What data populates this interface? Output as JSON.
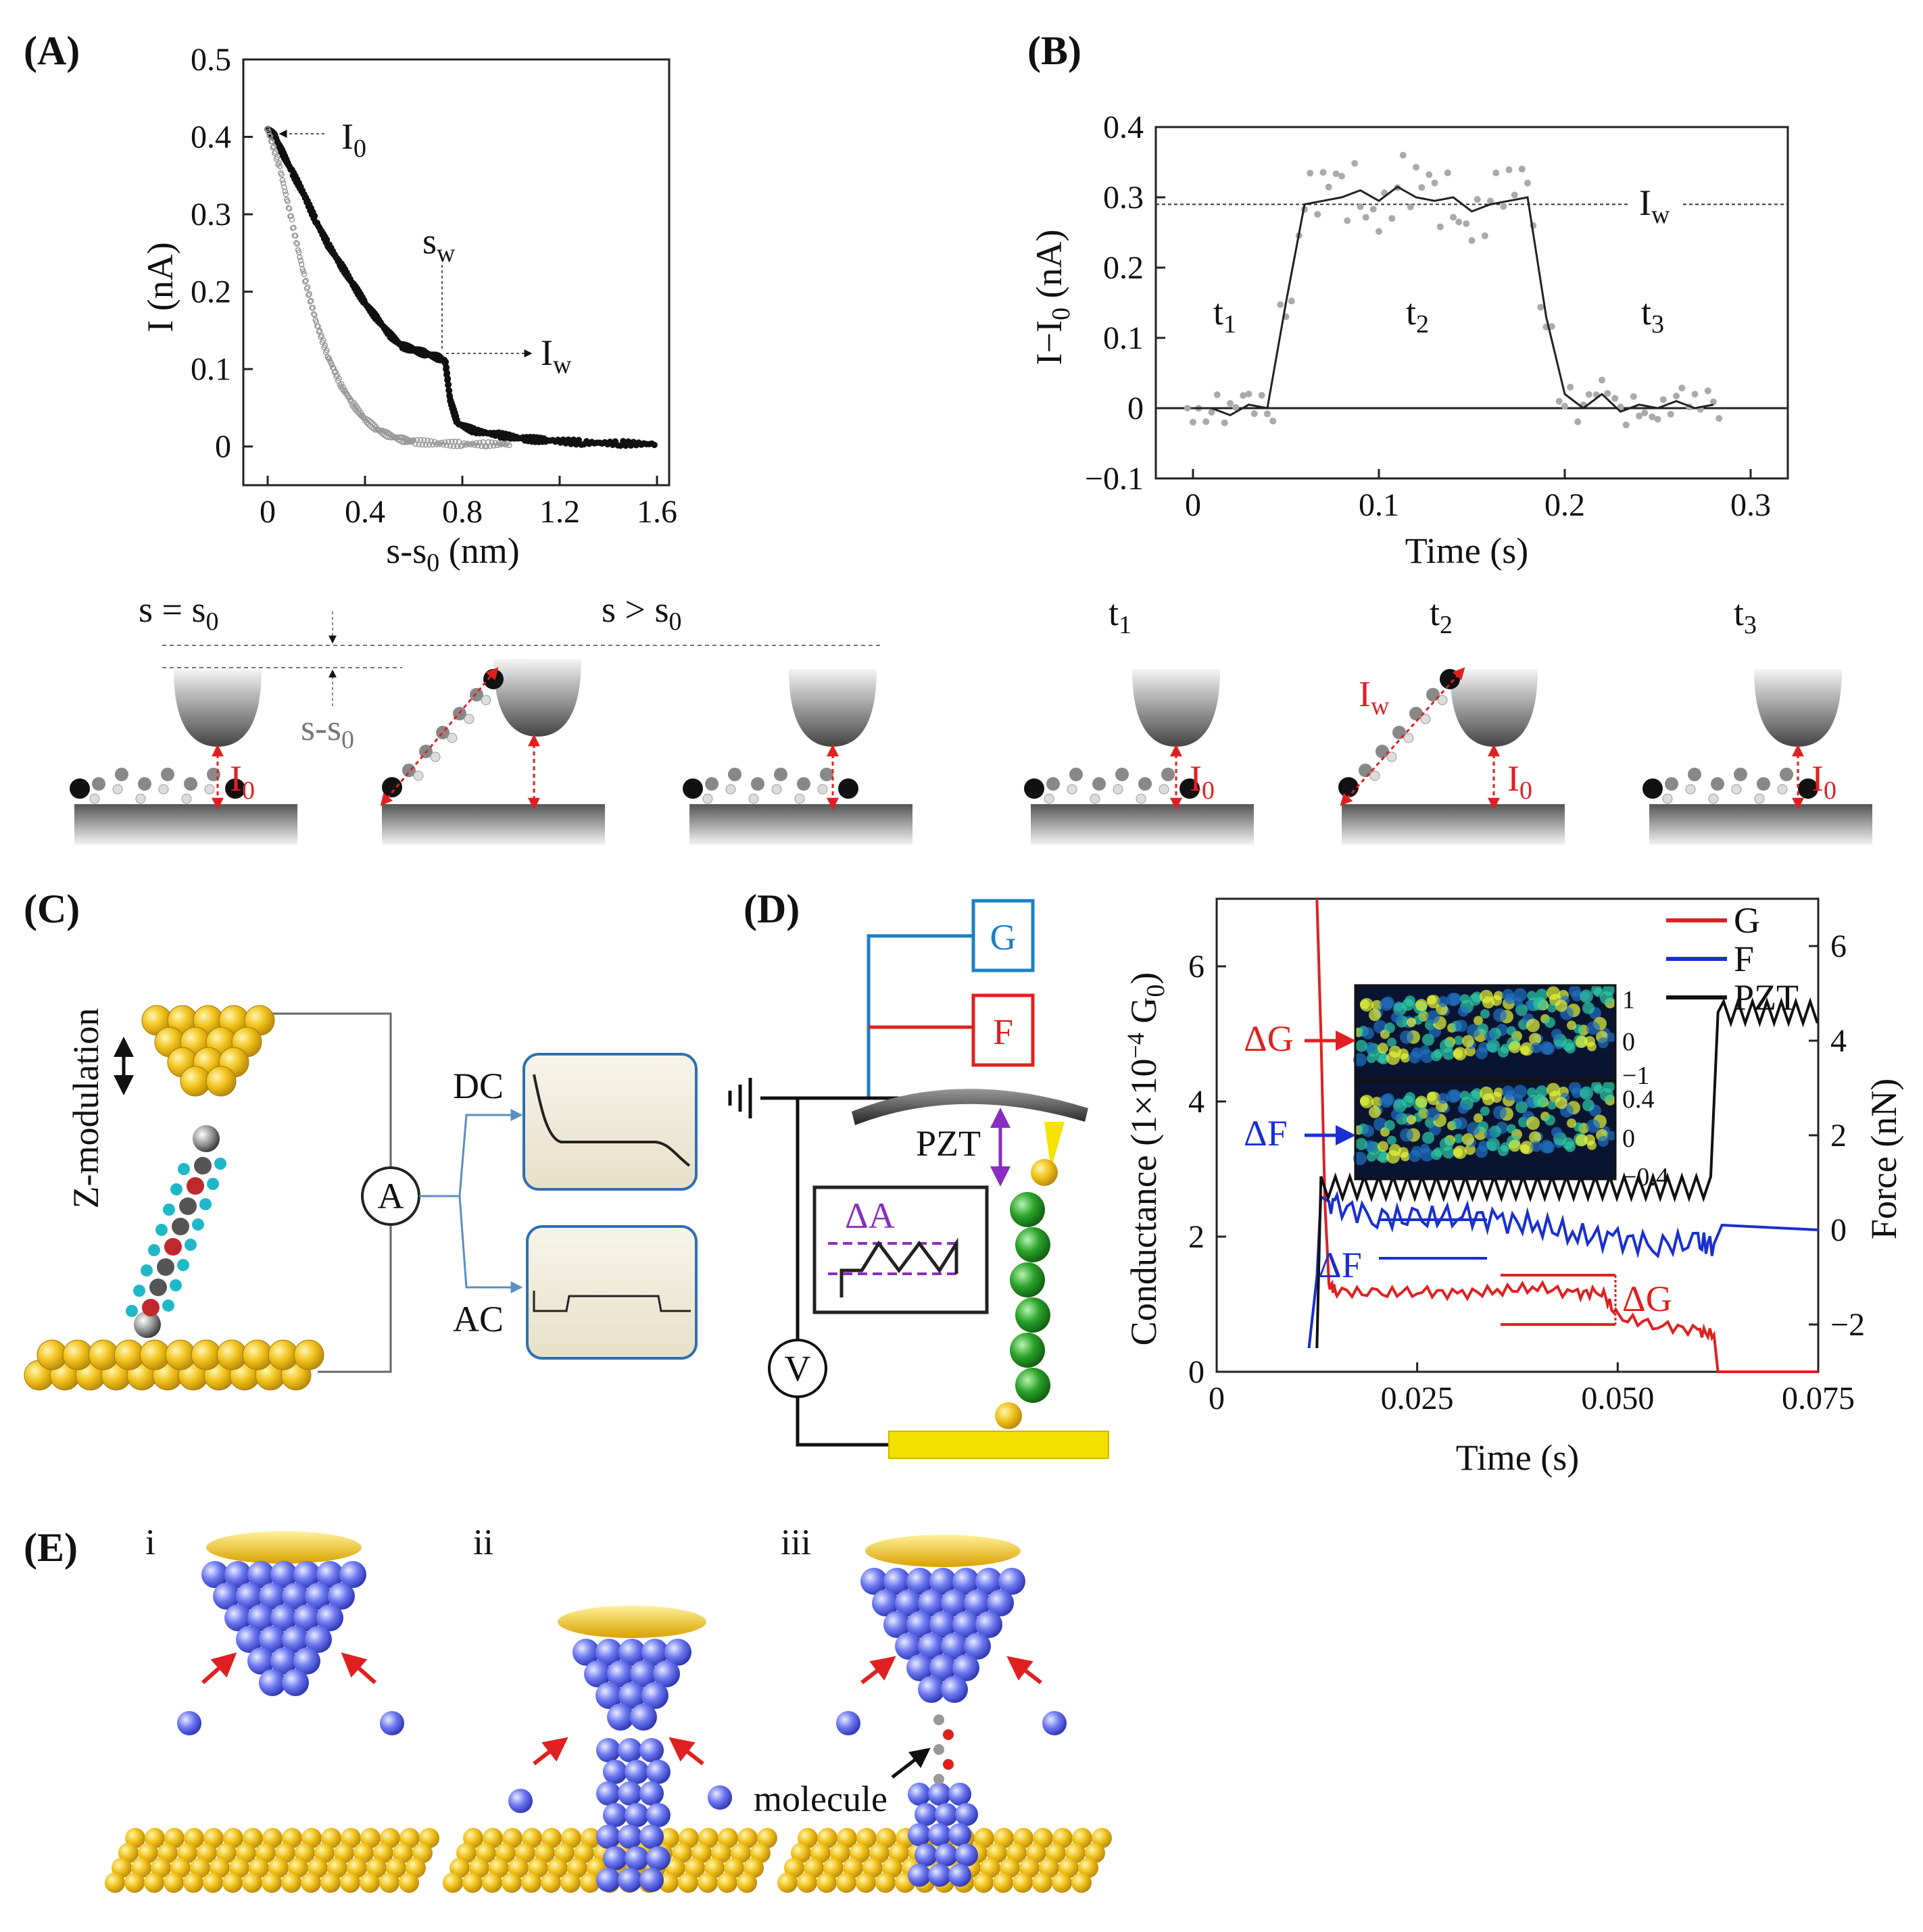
{
  "colors": {
    "red": "#e02020",
    "blue": "#1a2fd0",
    "black": "#111111",
    "gold": "#f1c21b",
    "atom_blue": "#4a55e6",
    "green": "#2aa22a",
    "purple": "#8a2dbf",
    "cyan_box": "#1d7fc8"
  },
  "panelA": {
    "label": "(A)",
    "xlabel": "s-s",
    "xlabel_sub": "0",
    "xlabel_unit": " (nm)",
    "ylabel": "I (nA)",
    "annotations": {
      "I0": "I",
      "I0_sub": "0",
      "sw": "s",
      "sw_sub": "w",
      "Iw": "I",
      "Iw_sub": "w"
    },
    "diagram": {
      "s_eq": "s = s",
      "s_eq_sub": "0",
      "s_gt": "s > s",
      "s_gt_sub": "0",
      "ds": "s-s",
      "ds_sub": "0",
      "I0": "I",
      "I0_sub": "0"
    }
  },
  "panelB": {
    "label": "(B)",
    "xlabel": "Time (s)",
    "ylabel": "I−I",
    "ylabel_sub": "0",
    "ylabel_unit": " (nA)",
    "Iw": "I",
    "Iw_sub": "w",
    "t1": "t",
    "t1_sub": "1",
    "t2": "t",
    "t2_sub": "2",
    "t3": "t",
    "t3_sub": "3",
    "diagram": {
      "I0": "I",
      "I0_sub": "0",
      "Iw": "I",
      "Iw_sub": "w"
    }
  },
  "panelC": {
    "label": "(C)",
    "zmod": "Z-modulation",
    "ammeter": "A",
    "dc": "DC",
    "ac": "AC"
  },
  "panelD": {
    "label": "(D)",
    "G_box": "G",
    "F_box": "F",
    "pzt": "PZT",
    "dA": "ΔA",
    "V": "V",
    "ylabel_left": "Conductance (1×10",
    "ylabel_left_exp": "−4",
    "ylabel_left_tail": " G",
    "ylabel_left_sub": "0",
    "ylabel_left_close": ")",
    "ylabel_right": "Force (nN)",
    "xlabel": "Time (s)",
    "legend": [
      {
        "name": "G",
        "color": "#e02020"
      },
      {
        "name": "F",
        "color": "#1a2fd0"
      },
      {
        "name": "PZT",
        "color": "#111111"
      }
    ],
    "dG": "ΔG",
    "dF": "ΔF"
  },
  "panelE": {
    "label": "(E)",
    "i": "i",
    "ii": "ii",
    "iii": "iii",
    "molecule": "molecule"
  },
  "chart_data": [
    {
      "type": "scatter",
      "panel": "A",
      "xlim": [
        -0.1,
        1.65
      ],
      "ylim": [
        -0.05,
        0.5
      ],
      "xticks": [
        {
          "v": 0,
          "t": "0"
        },
        {
          "v": 0.4,
          "t": "0.4"
        },
        {
          "v": 0.8,
          "t": "0.8"
        },
        {
          "v": 1.2,
          "t": "1.2"
        },
        {
          "v": 1.6,
          "t": "1.6"
        }
      ],
      "yticks": [
        {
          "v": 0,
          "t": "0"
        },
        {
          "v": 0.1,
          "t": "0.1"
        },
        {
          "v": 0.2,
          "t": "0.2"
        },
        {
          "v": 0.3,
          "t": "0.3"
        },
        {
          "v": 0.4,
          "t": "0.4"
        },
        {
          "v": 0.5,
          "t": "0.5"
        }
      ],
      "series": [
        {
          "color": "#111111",
          "x": [
            0,
            0.03,
            0.06,
            0.1,
            0.15,
            0.2,
            0.25,
            0.3,
            0.35,
            0.4,
            0.45,
            0.5,
            0.55,
            0.6,
            0.65,
            0.7,
            0.73,
            0.75,
            0.78,
            0.85,
            0.95,
            1.05,
            1.15,
            1.3,
            1.45,
            1.6
          ],
          "y": [
            0.41,
            0.4,
            0.38,
            0.355,
            0.325,
            0.29,
            0.26,
            0.235,
            0.21,
            0.185,
            0.165,
            0.145,
            0.13,
            0.125,
            0.12,
            0.115,
            0.11,
            0.06,
            0.03,
            0.02,
            0.015,
            0.01,
            0.008,
            0.005,
            0.004,
            0.003
          ]
        },
        {
          "color": "#999999",
          "x": [
            0,
            0.05,
            0.1,
            0.15,
            0.2,
            0.25,
            0.3,
            0.35,
            0.4,
            0.45,
            0.5,
            0.55,
            0.6,
            0.7,
            0.8,
            0.9,
            1.0
          ],
          "y": [
            0.41,
            0.36,
            0.29,
            0.22,
            0.16,
            0.115,
            0.08,
            0.055,
            0.035,
            0.022,
            0.014,
            0.009,
            0.006,
            0.004,
            0.003,
            0.003,
            0.003
          ]
        }
      ]
    },
    {
      "type": "line",
      "panel": "B",
      "xlim": [
        -0.02,
        0.32
      ],
      "ylim": [
        -0.1,
        0.4
      ],
      "xticks": [
        {
          "v": 0,
          "t": "0"
        },
        {
          "v": 0.1,
          "t": "0.1"
        },
        {
          "v": 0.2,
          "t": "0.2"
        },
        {
          "v": 0.3,
          "t": "0.3"
        }
      ],
      "yticks": [
        {
          "v": -0.1,
          "t": "−0.1"
        },
        {
          "v": 0,
          "t": "0"
        },
        {
          "v": 0.1,
          "t": "0.1"
        },
        {
          "v": 0.2,
          "t": "0.2"
        },
        {
          "v": 0.3,
          "t": "0.3"
        },
        {
          "v": 0.4,
          "t": "0.4"
        }
      ],
      "Iw_level": 0.29,
      "x": [
        0,
        0.01,
        0.02,
        0.03,
        0.04,
        0.05,
        0.06,
        0.07,
        0.08,
        0.09,
        0.1,
        0.11,
        0.12,
        0.13,
        0.14,
        0.15,
        0.16,
        0.17,
        0.18,
        0.19,
        0.2,
        0.21,
        0.22,
        0.23,
        0.24,
        0.25,
        0.26,
        0.27,
        0.28
      ],
      "y": [
        0,
        0.0,
        -0.01,
        0.005,
        0,
        0.15,
        0.29,
        0.295,
        0.3,
        0.31,
        0.295,
        0.315,
        0.3,
        0.295,
        0.3,
        0.28,
        0.29,
        0.295,
        0.3,
        0.13,
        0.02,
        0.0,
        0.02,
        -0.005,
        0.005,
        0.0,
        0.01,
        0.0,
        0.005
      ]
    },
    {
      "type": "line",
      "panel": "D",
      "xlim": [
        0,
        0.075
      ],
      "ylim": [
        0,
        7
      ],
      "y2lim": [
        -3,
        7
      ],
      "xticks": [
        {
          "v": 0,
          "t": "0"
        },
        {
          "v": 0.025,
          "t": "0.025"
        },
        {
          "v": 0.05,
          "t": "0.050"
        },
        {
          "v": 0.075,
          "t": "0.075"
        }
      ],
      "yticks": [
        {
          "v": 0,
          "t": "0"
        },
        {
          "v": 2,
          "t": "2"
        },
        {
          "v": 4,
          "t": "4"
        },
        {
          "v": 6,
          "t": "6"
        }
      ],
      "y2ticks": [
        {
          "v": -2,
          "t": "−2"
        },
        {
          "v": 0,
          "t": "0"
        },
        {
          "v": 2,
          "t": "2"
        },
        {
          "v": 4,
          "t": "4"
        },
        {
          "v": 6,
          "t": "6"
        }
      ],
      "series": [
        {
          "name": "G",
          "color": "#e02020",
          "x": [
            0.0125,
            0.013,
            0.0135,
            0.014,
            0.015,
            0.02,
            0.025,
            0.03,
            0.035,
            0.04,
            0.045,
            0.048,
            0.05,
            0.055,
            0.06,
            0.062,
            0.0625,
            0.075
          ],
          "y": [
            7,
            5,
            2.5,
            1.3,
            1.2,
            1.15,
            1.2,
            1.15,
            1.2,
            1.25,
            1.15,
            1.2,
            0.8,
            0.7,
            0.6,
            0.55,
            0,
            0
          ]
        },
        {
          "name": "F",
          "color": "#1a2fd0",
          "x": [
            0.0115,
            0.0125,
            0.013,
            0.015,
            0.02,
            0.025,
            0.03,
            0.035,
            0.04,
            0.045,
            0.05,
            0.055,
            0.06,
            0.062,
            0.063,
            0.075
          ],
          "y": [
            -2.5,
            -1,
            0.7,
            0.5,
            0.3,
            0.2,
            0.35,
            0.2,
            0.1,
            -0.1,
            -0.2,
            -0.3,
            -0.3,
            -0.3,
            0.1,
            0
          ]
        },
        {
          "name": "PZT",
          "color": "#111111",
          "x": [
            0.0125,
            0.013,
            0.062,
            0.0625,
            0.063,
            0.075
          ],
          "y": [
            0.9,
            0.9,
            0.9,
            0.9,
            4.6,
            4.6
          ]
        }
      ]
    }
  ]
}
